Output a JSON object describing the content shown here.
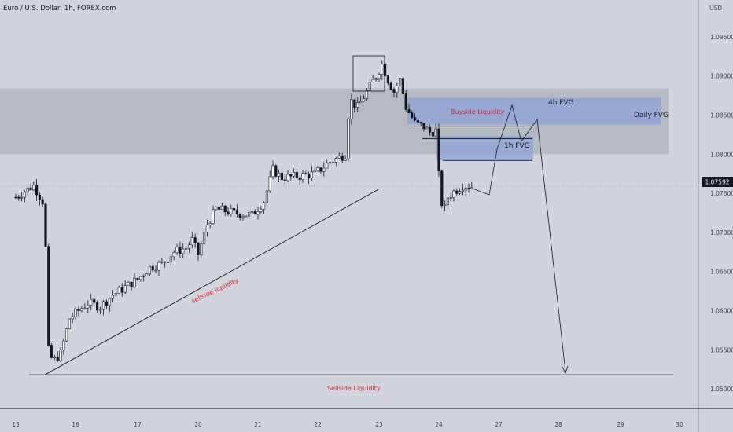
{
  "title": "Euro / U.S. Dollar, 1h, FOREX.com",
  "price_axis_unit": "USD",
  "current_price": "1.07592",
  "chart_data": {
    "type": "candlestick",
    "title": "Euro / U.S. Dollar, 1h, FOREX.com",
    "ylim": [
      1.0475,
      1.0975
    ],
    "x_ticks": [
      "15",
      "16",
      "17",
      "20",
      "21",
      "22",
      "23",
      "24",
      "27",
      "28",
      "29",
      "30"
    ],
    "y_ticks": [
      "1.09500",
      "1.09000",
      "1.08500",
      "1.08000",
      "1.07500",
      "1.07000",
      "1.06500",
      "1.06000",
      "1.05500",
      "1.05000"
    ],
    "current_price": 1.07592,
    "price_path": [
      [
        0,
        1.0745
      ],
      [
        0.3,
        1.076
      ],
      [
        0.45,
        1.074
      ],
      [
        0.5,
        1.068
      ],
      [
        0.55,
        1.055
      ],
      [
        0.62,
        1.0535
      ],
      [
        0.75,
        1.0545
      ],
      [
        0.9,
        1.059
      ],
      [
        1.2,
        1.061
      ],
      [
        1.4,
        1.0605
      ],
      [
        1.6,
        1.062
      ],
      [
        1.8,
        1.063
      ],
      [
        2.0,
        1.064
      ],
      [
        2.2,
        1.0655
      ],
      [
        2.4,
        1.066
      ],
      [
        2.6,
        1.0675
      ],
      [
        2.8,
        1.068
      ],
      [
        2.9,
        1.069
      ],
      [
        3.0,
        1.0672
      ],
      [
        3.15,
        1.071
      ],
      [
        3.3,
        1.073
      ],
      [
        3.6,
        1.0725
      ],
      [
        3.9,
        1.0722
      ],
      [
        4.1,
        1.074
      ],
      [
        4.25,
        1.078
      ],
      [
        4.4,
        1.077
      ],
      [
        4.7,
        1.0772
      ],
      [
        4.95,
        1.0775
      ],
      [
        5.2,
        1.079
      ],
      [
        5.45,
        1.08
      ],
      [
        5.52,
        1.087
      ],
      [
        5.65,
        1.086
      ],
      [
        5.8,
        1.088
      ],
      [
        5.95,
        1.09
      ],
      [
        6.05,
        1.0915
      ],
      [
        6.15,
        1.0895
      ],
      [
        6.25,
        1.088
      ],
      [
        6.35,
        1.0895
      ],
      [
        6.45,
        1.086
      ],
      [
        6.6,
        1.084
      ],
      [
        6.75,
        1.0835
      ],
      [
        6.85,
        1.0828
      ],
      [
        6.95,
        1.083
      ],
      [
        7.02,
        1.075
      ],
      [
        7.08,
        1.0725
      ],
      [
        7.15,
        1.0745
      ],
      [
        7.25,
        1.0752
      ],
      [
        7.4,
        1.076
      ],
      [
        7.55,
        1.0759
      ]
    ],
    "bands": [
      {
        "name": "Daily FVG",
        "y_low": 1.08,
        "y_high": 1.0884
      },
      {
        "name": "4h FVG",
        "y_low": 1.0838,
        "y_high": 1.0872
      },
      {
        "name": "1h FVG",
        "y_low": 1.0792,
        "y_high": 1.0823
      }
    ],
    "annotations": [
      {
        "text": "Buyside Liquidity",
        "y": 1.0836
      },
      {
        "text": "sellside liquidity",
        "trendline_from": [
          0.65,
          1.0518
        ],
        "trendline_to": [
          5.7,
          1.0755
        ]
      },
      {
        "text": "Sellside Liquidity",
        "y": 1.0518
      }
    ],
    "projection": [
      [
        7.55,
        1.0756
      ],
      [
        7.7,
        1.0752
      ],
      [
        7.95,
        1.084
      ],
      [
        8.15,
        1.081
      ],
      [
        8.55,
        1.085
      ],
      [
        8.85,
        1.0806
      ],
      [
        9.15,
        1.0832
      ],
      [
        10.2,
        1.0527
      ]
    ]
  },
  "labels": {
    "daily_fvg": "Daily FVG",
    "fvg_4h": "4h FVG",
    "fvg_1h": "1h FVG",
    "buyside": "Buyside Liquidity",
    "sellside_trend": "sellside liquidity",
    "sellside": "Sellside Liquidity"
  },
  "colors": {
    "background": "#d1d4dc",
    "band_dark": "#b2b5bd",
    "band_blue": "#8ca3d8",
    "candle": "#131722",
    "red_label": "#e01e2c"
  }
}
